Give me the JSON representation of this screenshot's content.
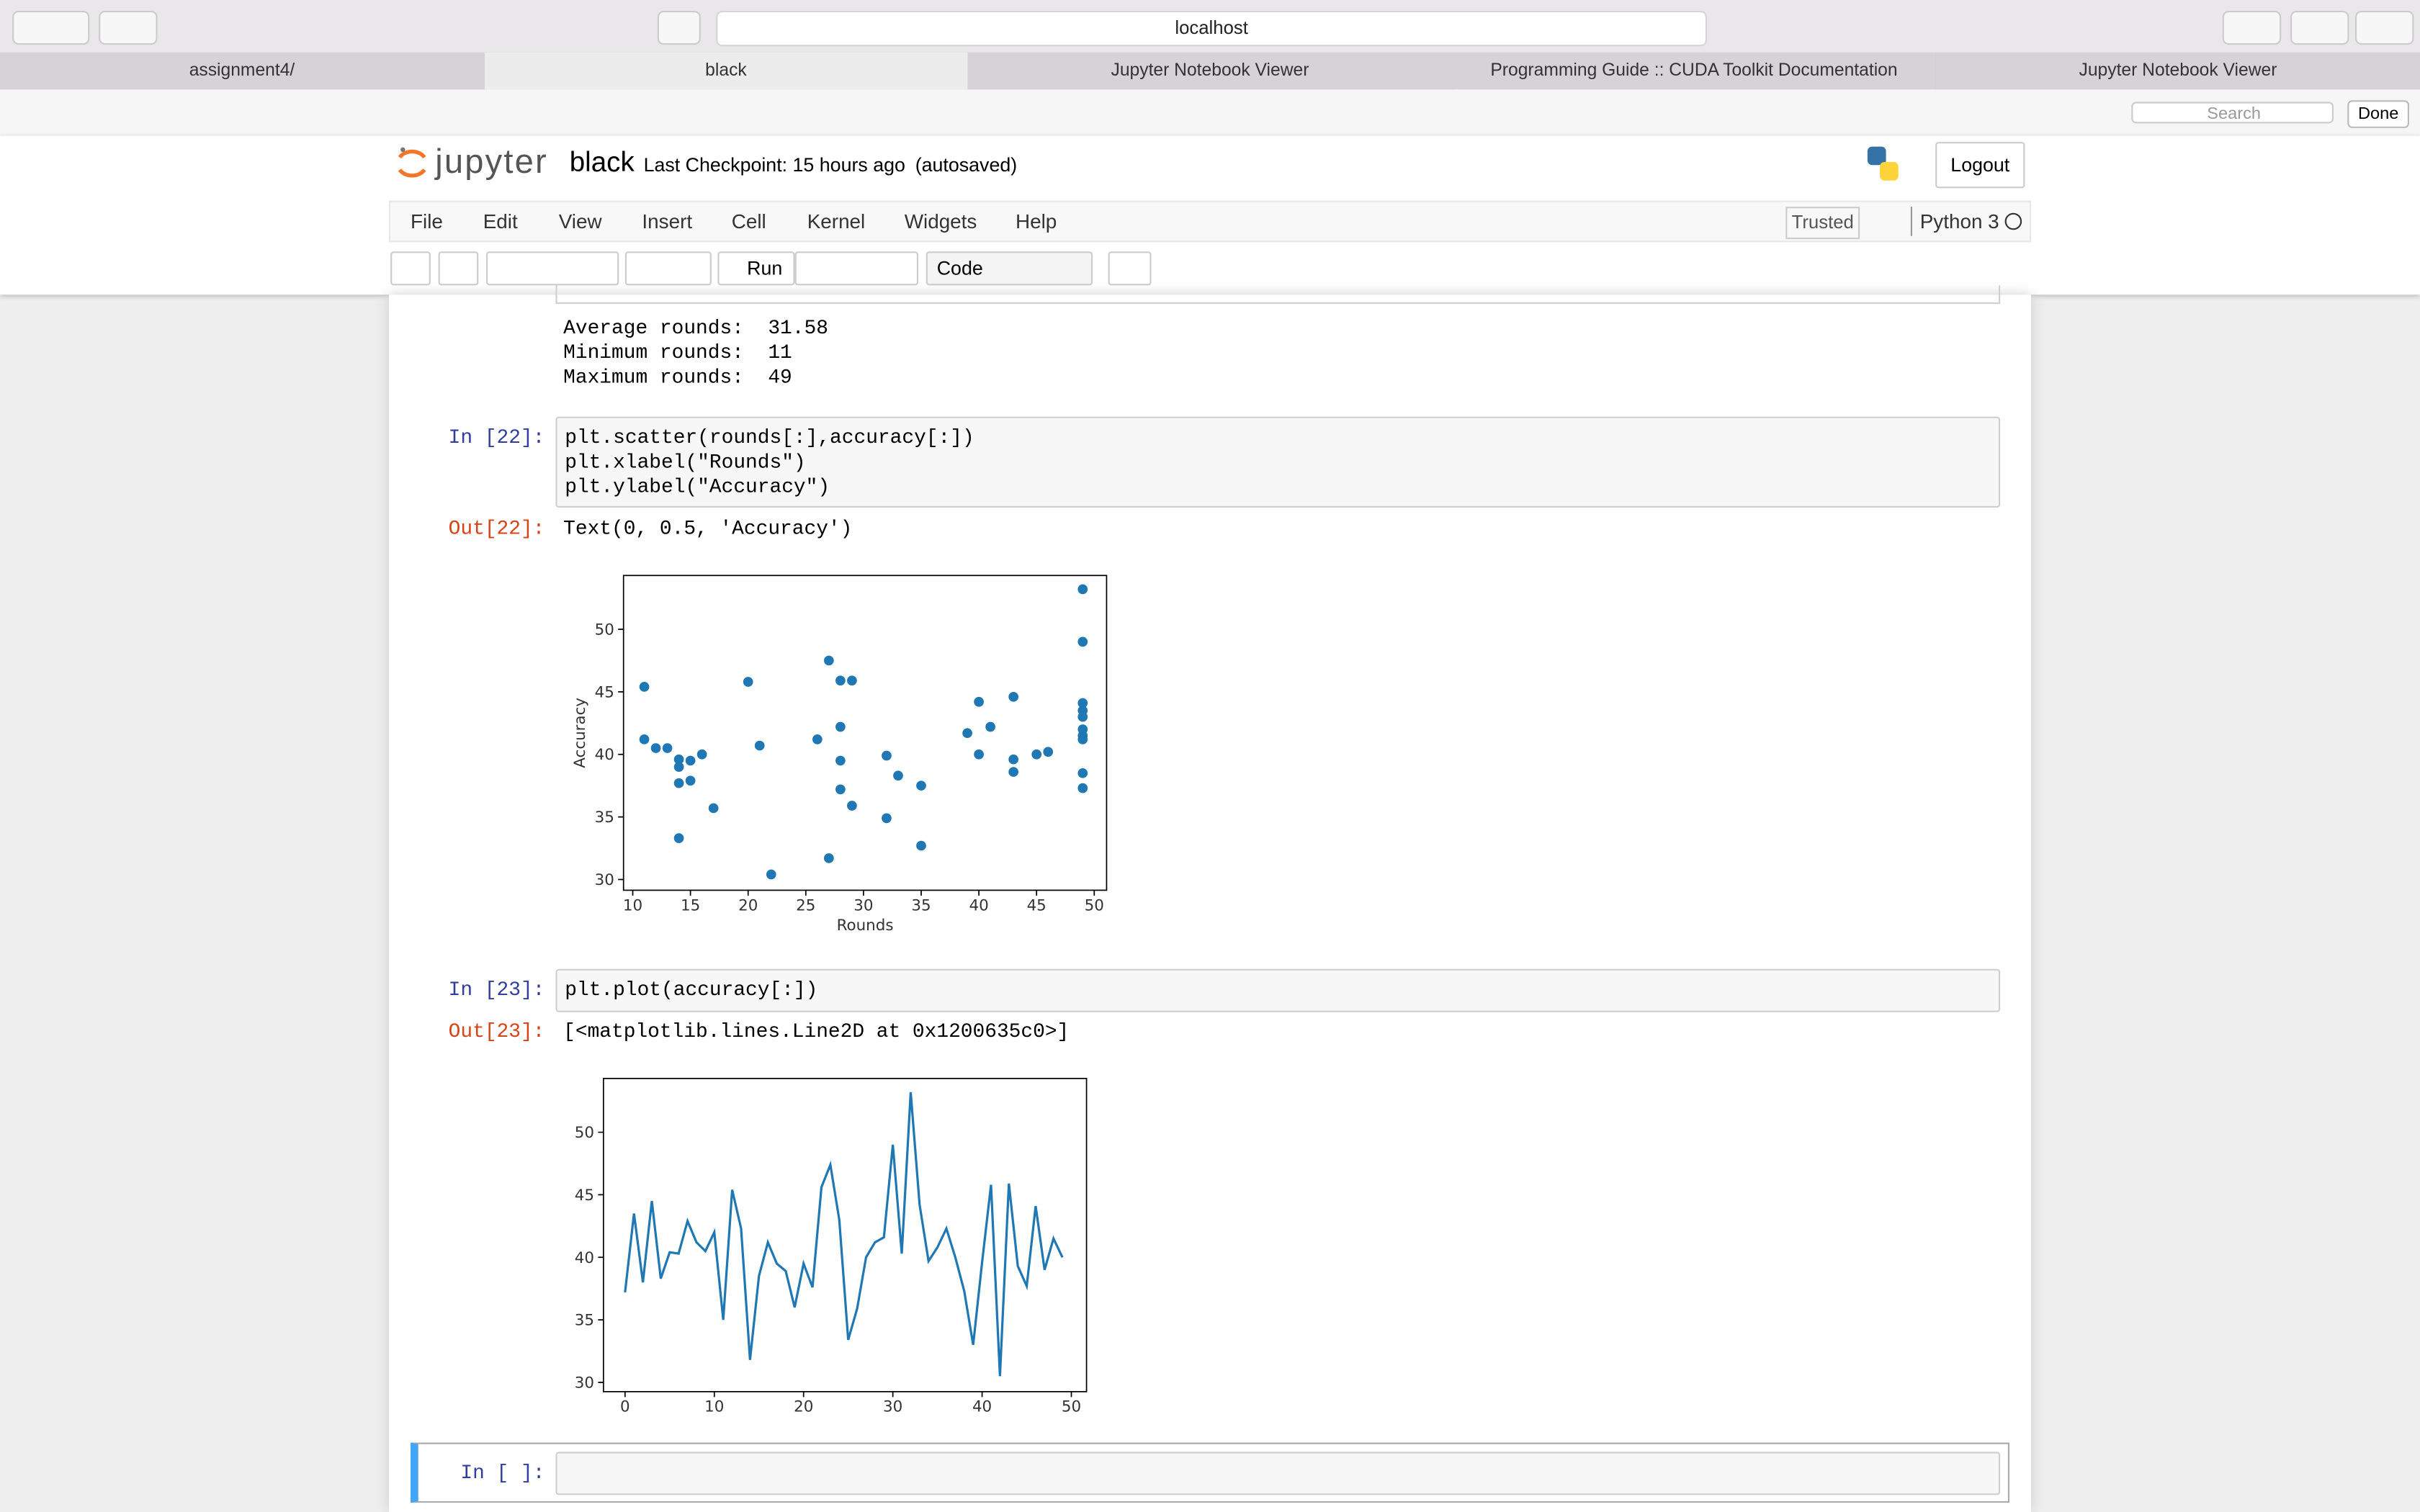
{
  "browser": {
    "address": "localhost",
    "tabs": [
      "assignment4/",
      "black",
      "Jupyter Notebook Viewer",
      "Programming Guide :: CUDA Toolkit Documentation",
      "Jupyter Notebook Viewer"
    ],
    "search": "Search",
    "done": "Done"
  },
  "notebook": {
    "logo": "jupyter",
    "name": "black",
    "checkpoint": "Last Checkpoint: 15 hours ago",
    "autosaved": "(autosaved)",
    "logout": "Logout",
    "menu": [
      "File",
      "Edit",
      "View",
      "Insert",
      "Cell",
      "Kernel",
      "Widgets",
      "Help"
    ],
    "trusted": "Trusted",
    "kernel": "Python 3",
    "run": "Run",
    "cell_type": "Code"
  },
  "cells": [
    {
      "output": [
        "Average rounds:  31.58",
        "Minimum rounds:  11",
        "Maximum rounds:  49"
      ]
    },
    {
      "prompt": "In [22]:",
      "code": [
        "plt.scatter(rounds[:],accuracy[:])",
        "plt.xlabel(\"Rounds\")",
        "plt.ylabel(\"Accuracy\")"
      ],
      "out_prompt": "Out[22]:",
      "out": "Text(0, 0.5, 'Accuracy')"
    },
    {
      "prompt": "In [23]:",
      "code": [
        "plt.plot(accuracy[:])"
      ],
      "out_prompt": "Out[23]:",
      "out": "[<matplotlib.lines.Line2D at 0x1200635c0>]"
    },
    {
      "prompt": "In [ ]:"
    }
  ],
  "chart_data": [
    {
      "type": "scatter",
      "xlabel": "Rounds",
      "ylabel": "Accuracy",
      "color": "#1f77b4",
      "x": [
        11,
        11,
        12,
        13,
        14,
        14,
        15,
        16,
        14,
        15,
        17,
        14,
        20,
        21,
        22,
        26,
        27,
        28,
        29,
        28,
        28,
        28,
        29,
        27,
        32,
        33,
        32,
        35,
        35,
        39,
        40,
        41,
        40,
        43,
        43,
        43,
        45,
        46,
        49,
        49,
        49,
        49,
        49,
        49,
        49,
        49,
        49,
        49
      ],
      "y": [
        45.4,
        41.2,
        40.5,
        40.5,
        39.6,
        39.0,
        39.5,
        40.0,
        37.7,
        37.9,
        35.7,
        33.3,
        45.8,
        40.7,
        30.4,
        41.2,
        47.5,
        45.9,
        45.9,
        42.2,
        39.5,
        37.2,
        35.9,
        31.7,
        39.9,
        38.3,
        34.9,
        37.5,
        32.7,
        41.7,
        44.2,
        42.2,
        40.0,
        44.6,
        39.6,
        38.6,
        40.0,
        40.2,
        53.2,
        49.0,
        44.1,
        43.5,
        43.0,
        42.0,
        41.5,
        41.2,
        38.5,
        37.3
      ],
      "xlim": [
        9.2,
        51.07
      ],
      "ylim": [
        29.14,
        54.3
      ],
      "xticks": [
        10,
        15,
        20,
        25,
        30,
        35,
        40,
        45,
        50
      ],
      "yticks": [
        30,
        35,
        40,
        45,
        50
      ]
    },
    {
      "type": "line",
      "color": "#1f77b4",
      "values": [
        37.2,
        43.5,
        38.0,
        44.5,
        38.3,
        40.4,
        40.3,
        42.9,
        41.2,
        40.5,
        42.0,
        35.0,
        45.4,
        42.3,
        31.8,
        38.5,
        41.2,
        39.5,
        38.9,
        36.0,
        39.5,
        37.6,
        45.6,
        47.4,
        43.0,
        33.4,
        35.9,
        40.0,
        41.2,
        41.6,
        49.0,
        40.3,
        53.2,
        44.2,
        39.7,
        40.8,
        42.3,
        40.0,
        37.3,
        33.0,
        39.6,
        45.8,
        30.5,
        45.9,
        39.3,
        37.7,
        44.1,
        39.0,
        41.5,
        40.0
      ],
      "xlim": [
        -2.42,
        51.7
      ],
      "ylim": [
        29.26,
        54.3
      ],
      "xticks": [
        0,
        10,
        20,
        30,
        40,
        50
      ],
      "yticks": [
        30,
        35,
        40,
        45,
        50
      ]
    }
  ]
}
